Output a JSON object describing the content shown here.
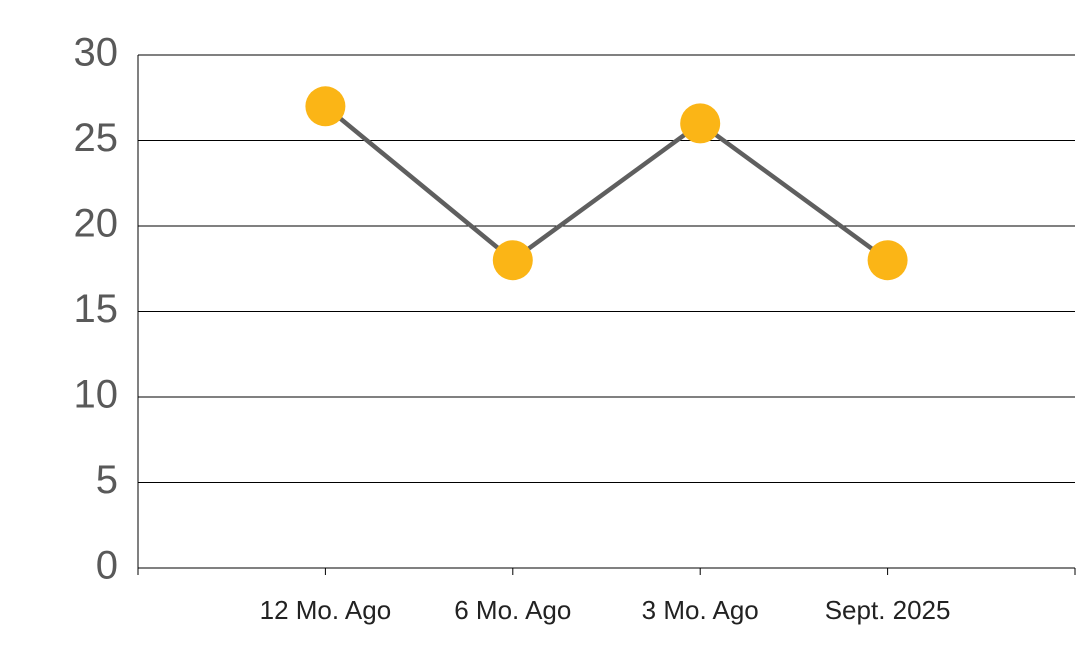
{
  "chart_data": {
    "type": "line",
    "categories": [
      "12 Mo. Ago",
      "6 Mo. Ago",
      "3 Mo. Ago",
      "Sept. 2025"
    ],
    "values": [
      27,
      18,
      26,
      18
    ],
    "color": "#5f5f5f",
    "marker_color": "#fbb516",
    "ylim": [
      0,
      30
    ],
    "yticks": [
      0,
      5,
      10,
      15,
      20,
      25,
      30
    ],
    "grid": true
  }
}
